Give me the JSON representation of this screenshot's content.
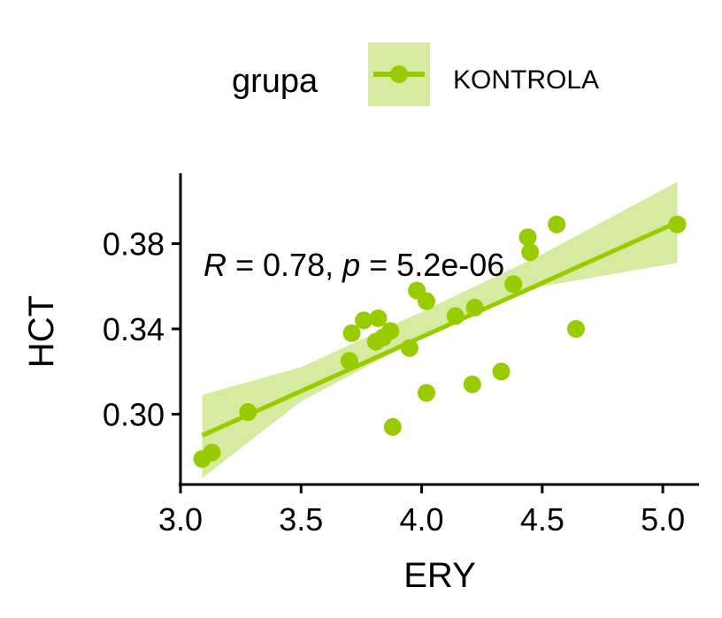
{
  "chart_data": {
    "type": "scatter",
    "xlabel": "ERY",
    "ylabel": "HCT",
    "xlim": [
      3.0,
      5.15
    ],
    "ylim": [
      0.267,
      0.413
    ],
    "x_ticks": [
      3.0,
      3.5,
      4.0,
      4.5,
      5.0
    ],
    "x_tick_labels": [
      "3.0",
      "3.5",
      "4.0",
      "4.5",
      "5.0"
    ],
    "y_ticks": [
      0.3,
      0.34,
      0.38
    ],
    "y_tick_labels": [
      "0.30",
      "0.34",
      "0.38"
    ],
    "legend": {
      "title": "grupa",
      "placement": "top",
      "entries": [
        {
          "label": "KONTROLA",
          "color": "#99CC00"
        }
      ]
    },
    "series": [
      {
        "name": "KONTROLA",
        "color": "#99CC00",
        "band_color": "#D6EAA0",
        "points": [
          {
            "x": 3.09,
            "y": 0.279
          },
          {
            "x": 3.13,
            "y": 0.282
          },
          {
            "x": 3.28,
            "y": 0.301
          },
          {
            "x": 3.7,
            "y": 0.325
          },
          {
            "x": 3.71,
            "y": 0.338
          },
          {
            "x": 3.76,
            "y": 0.344
          },
          {
            "x": 3.81,
            "y": 0.334
          },
          {
            "x": 3.82,
            "y": 0.345
          },
          {
            "x": 3.84,
            "y": 0.336
          },
          {
            "x": 3.87,
            "y": 0.339
          },
          {
            "x": 3.88,
            "y": 0.294
          },
          {
            "x": 3.95,
            "y": 0.331
          },
          {
            "x": 3.98,
            "y": 0.358
          },
          {
            "x": 4.02,
            "y": 0.353
          },
          {
            "x": 4.02,
            "y": 0.31
          },
          {
            "x": 4.14,
            "y": 0.346
          },
          {
            "x": 4.21,
            "y": 0.314
          },
          {
            "x": 4.22,
            "y": 0.35
          },
          {
            "x": 4.33,
            "y": 0.32
          },
          {
            "x": 4.38,
            "y": 0.361
          },
          {
            "x": 4.44,
            "y": 0.383
          },
          {
            "x": 4.45,
            "y": 0.376
          },
          {
            "x": 4.56,
            "y": 0.389
          },
          {
            "x": 4.64,
            "y": 0.34
          },
          {
            "x": 5.06,
            "y": 0.389
          }
        ],
        "regression": {
          "x0": 3.09,
          "y0": 0.29,
          "x1": 5.06,
          "y1": 0.39
        },
        "confidence_band": {
          "x": [
            3.09,
            3.5,
            4.0,
            4.5,
            5.06
          ],
          "lower": [
            0.27,
            0.306,
            0.336,
            0.36,
            0.371
          ],
          "upper": [
            0.309,
            0.322,
            0.348,
            0.375,
            0.409
          ]
        }
      }
    ],
    "annotation": {
      "r_symbol": "R",
      "r_text": " = 0.78, ",
      "p_symbol": "p",
      "p_text": " = 5.2e-06"
    }
  }
}
